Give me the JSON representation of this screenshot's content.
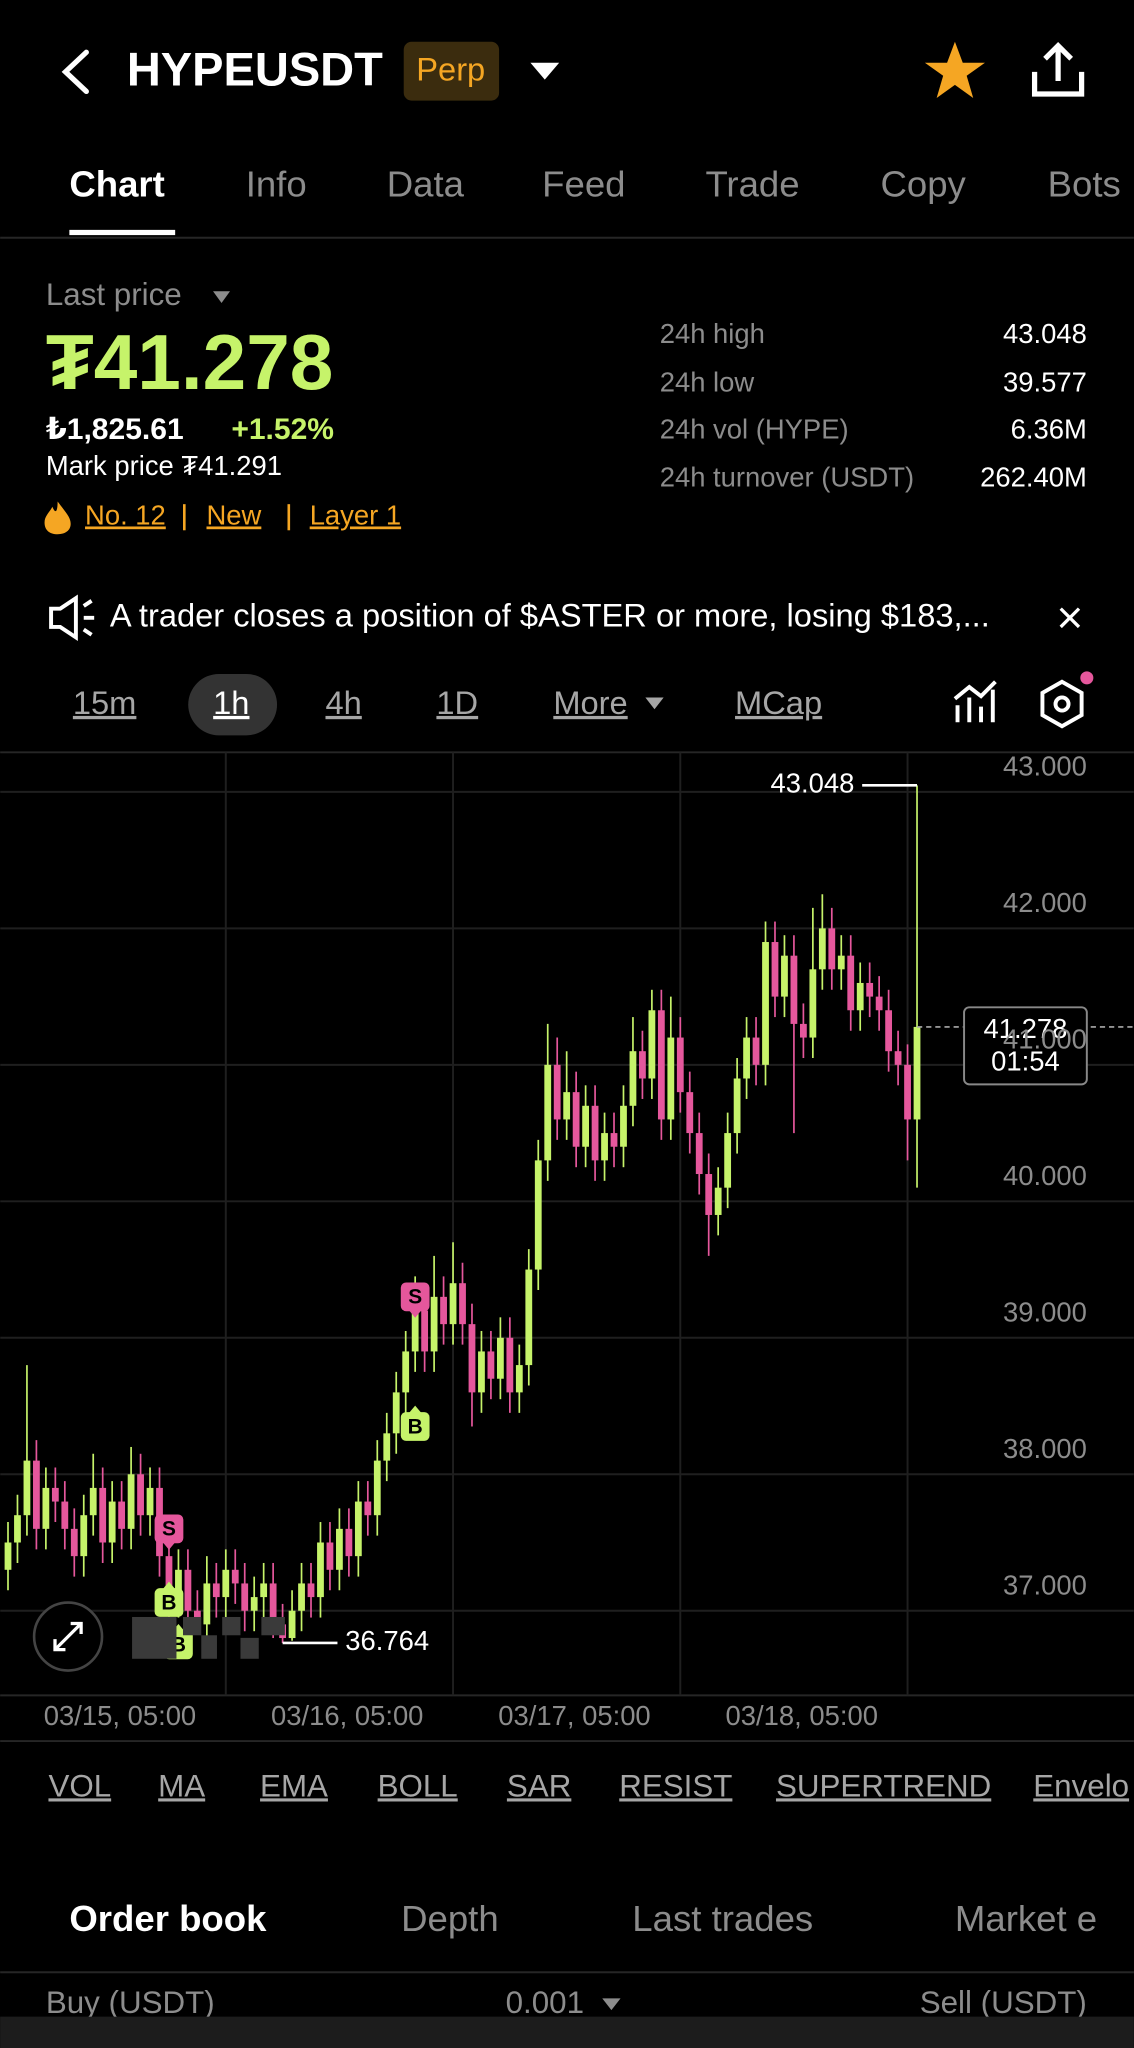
{
  "header": {
    "symbol": "HYPEUSDT",
    "badge": "Perp"
  },
  "tabs": [
    "Chart",
    "Info",
    "Data",
    "Feed",
    "Trade",
    "Copy",
    "Bots"
  ],
  "price": {
    "label": "Last price",
    "last": "₮41.278",
    "converted": "₺1,825.61",
    "change": "+1.52%",
    "mark": "Mark price ₮41.291",
    "tags": [
      "No. 12",
      "New",
      "Layer 1"
    ]
  },
  "stats": [
    {
      "label": "24h high",
      "value": "43.048"
    },
    {
      "label": "24h low",
      "value": "39.577"
    },
    {
      "label": "24h vol (HYPE)",
      "value": "6.36M"
    },
    {
      "label": "24h turnover (USDT)",
      "value": "262.40M"
    }
  ],
  "announcement": "A trader closes a position of $ASTER or more, losing $183,...",
  "intervals": [
    "15m",
    "1h",
    "4h",
    "1D",
    "More",
    "MCap"
  ],
  "chart_data": {
    "type": "candlestick",
    "up_color": "#c6f36a",
    "down_color": "#e5579c",
    "grid": true,
    "xlim": [
      -0.83,
      118.9
    ],
    "ylim": [
      36.38,
      43.29
    ],
    "yticks": [
      {
        "value": 43,
        "label": "43.000"
      },
      {
        "value": 42,
        "label": "42.000"
      },
      {
        "value": 41,
        "label": "41.000"
      },
      {
        "value": 40,
        "label": "40.000"
      },
      {
        "value": 39,
        "label": "39.000"
      },
      {
        "value": 38,
        "label": "38.000"
      },
      {
        "value": 37,
        "label": "37.000"
      }
    ],
    "xticks": [
      {
        "value": 23,
        "label": "03/15, 05:00"
      },
      {
        "value": 47,
        "label": "03/16, 05:00"
      },
      {
        "value": 71,
        "label": "03/17, 05:00"
      },
      {
        "value": 95,
        "label": "03/18, 05:00"
      }
    ],
    "open": [
      37.3,
      37.5,
      37.7,
      38.1,
      37.6,
      37.9,
      37.8,
      37.6,
      37.4,
      37.7,
      37.9,
      37.5,
      37.8,
      37.6,
      38.0,
      37.7,
      37.9,
      37.4,
      37.1,
      37.3,
      37.0,
      36.9,
      37.2,
      37.1,
      37.3,
      37.2,
      37.0,
      37.1,
      37.2,
      36.9,
      36.8,
      37.0,
      37.2,
      37.1,
      37.5,
      37.3,
      37.6,
      37.4,
      37.8,
      37.7,
      38.1,
      38.3,
      38.6,
      38.9,
      39.2,
      38.9,
      39.3,
      39.1,
      39.4,
      39.1,
      38.6,
      38.9,
      38.7,
      39.0,
      38.6,
      38.8,
      39.5,
      40.3,
      41.0,
      40.6,
      40.8,
      40.4,
      40.7,
      40.3,
      40.5,
      40.4,
      40.7,
      41.1,
      40.9,
      41.4,
      40.6,
      41.2,
      40.8,
      40.5,
      40.2,
      39.9,
      40.1,
      40.5,
      40.9,
      41.2,
      41.0,
      41.9,
      41.5,
      41.8,
      41.3,
      41.2,
      41.7,
      42.0,
      41.7,
      41.8,
      41.4,
      41.6,
      41.5,
      41.4,
      41.1,
      41.0,
      40.6
    ],
    "high": [
      37.65,
      37.85,
      38.8,
      38.25,
      38.05,
      38.05,
      37.95,
      37.75,
      37.85,
      38.15,
      38.05,
      37.95,
      37.95,
      38.2,
      38.15,
      38.05,
      38.05,
      37.55,
      37.45,
      37.45,
      37.15,
      37.4,
      37.35,
      37.45,
      37.45,
      37.35,
      37.25,
      37.35,
      37.35,
      37.05,
      37.15,
      37.35,
      37.35,
      37.65,
      37.65,
      37.75,
      37.75,
      37.95,
      37.95,
      38.25,
      38.45,
      38.75,
      39.05,
      39.45,
      39.35,
      39.6,
      39.45,
      39.7,
      39.55,
      39.25,
      39.05,
      39.05,
      39.15,
      39.15,
      38.95,
      39.65,
      40.45,
      41.3,
      41.2,
      41.1,
      40.95,
      40.85,
      40.85,
      40.65,
      40.65,
      40.85,
      41.35,
      41.25,
      41.55,
      41.55,
      41.5,
      41.35,
      40.95,
      40.65,
      40.35,
      40.25,
      40.65,
      41.05,
      41.35,
      41.35,
      42.05,
      42.05,
      41.95,
      41.95,
      41.45,
      42.15,
      42.25,
      42.15,
      41.95,
      41.95,
      41.75,
      41.75,
      41.65,
      41.55,
      41.25,
      41.15,
      43.048
    ],
    "low": [
      37.15,
      37.35,
      37.55,
      37.45,
      37.45,
      37.65,
      37.45,
      37.25,
      37.25,
      37.55,
      37.35,
      37.35,
      37.45,
      37.45,
      37.55,
      37.55,
      37.25,
      36.95,
      36.95,
      36.85,
      36.85,
      36.8,
      36.95,
      36.95,
      37.05,
      36.85,
      36.85,
      36.95,
      36.8,
      36.764,
      36.78,
      36.85,
      36.95,
      36.95,
      37.15,
      37.15,
      37.25,
      37.25,
      37.55,
      37.55,
      37.95,
      38.15,
      38.45,
      38.75,
      38.75,
      38.75,
      38.95,
      38.95,
      38.95,
      38.35,
      38.45,
      38.55,
      38.55,
      38.45,
      38.45,
      38.65,
      39.35,
      40.15,
      40.45,
      40.45,
      40.25,
      40.25,
      40.15,
      40.15,
      40.25,
      40.25,
      40.55,
      40.75,
      40.75,
      40.45,
      40.45,
      40.65,
      40.35,
      40.05,
      39.6,
      39.75,
      39.95,
      40.35,
      40.75,
      40.85,
      40.85,
      41.35,
      41.35,
      40.5,
      41.05,
      41.05,
      41.55,
      41.55,
      41.55,
      41.25,
      41.25,
      41.35,
      41.25,
      40.95,
      40.85,
      40.3,
      40.1
    ],
    "close": [
      37.5,
      37.7,
      38.1,
      37.6,
      37.9,
      37.8,
      37.6,
      37.4,
      37.7,
      37.9,
      37.5,
      37.8,
      37.6,
      38.0,
      37.7,
      37.9,
      37.4,
      37.1,
      37.3,
      37.0,
      36.9,
      37.2,
      37.1,
      37.3,
      37.2,
      37.0,
      37.1,
      37.2,
      36.9,
      36.8,
      37.0,
      37.2,
      37.1,
      37.5,
      37.3,
      37.6,
      37.4,
      37.8,
      37.7,
      38.1,
      38.3,
      38.6,
      38.9,
      39.2,
      38.9,
      39.3,
      39.1,
      39.4,
      39.1,
      38.6,
      38.9,
      38.7,
      39.0,
      38.6,
      38.8,
      39.5,
      40.3,
      41.0,
      40.6,
      40.8,
      40.4,
      40.7,
      40.3,
      40.5,
      40.4,
      40.7,
      41.1,
      40.9,
      41.4,
      40.6,
      41.2,
      40.8,
      40.5,
      40.2,
      39.9,
      40.1,
      40.5,
      40.9,
      41.2,
      41.0,
      41.9,
      41.5,
      41.8,
      41.3,
      41.2,
      41.7,
      42.0,
      41.7,
      41.8,
      41.4,
      41.6,
      41.5,
      41.4,
      41.1,
      41.0,
      40.6,
      41.278
    ],
    "high_annotation": {
      "value": 43.048,
      "label": "43.048",
      "index": 96
    },
    "low_annotation": {
      "value": 36.764,
      "label": "36.764",
      "index": 29
    },
    "last_price": {
      "value": 41.278,
      "label": "41.278"
    },
    "countdown": "01:54",
    "markers": [
      {
        "label": "S",
        "index": 17,
        "price": 37.6
      },
      {
        "label": "B",
        "index": 17,
        "price": 37.06
      },
      {
        "label": "B",
        "index": 18,
        "price": 36.75
      },
      {
        "label": "S",
        "index": 43,
        "price": 39.3
      },
      {
        "label": "B",
        "index": 43,
        "price": 38.35
      }
    ]
  },
  "indicators": [
    "VOL",
    "MA",
    "EMA",
    "BOLL",
    "SAR",
    "RESIST",
    "SUPERTREND",
    "Envelo"
  ],
  "orderbook": {
    "tabs": [
      "Order book",
      "Depth",
      "Last trades",
      "Market e"
    ],
    "buy": "Buy (USDT)",
    "step": "0.001",
    "sell": "Sell (USDT)"
  }
}
